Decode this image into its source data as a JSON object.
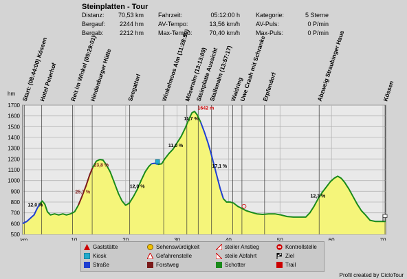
{
  "header": {
    "title": "Steinplatten - Tour",
    "stats": [
      {
        "label": "Distanz:",
        "value": "70,53 km"
      },
      {
        "label": "Bergauf:",
        "value": "2244 hm"
      },
      {
        "label": "Bergab:",
        "value": "2212 hm"
      }
    ],
    "stats2": [
      {
        "label": "Fahrzeit:",
        "value": "05:12:00 h"
      },
      {
        "label": "AV-Tempo:",
        "value": "13,56 km/h"
      },
      {
        "label": "Max-Tempo:",
        "value": "70,40 km/h"
      }
    ],
    "stats3": [
      {
        "label": "Kategorie:",
        "value": "5 Sterne"
      },
      {
        "label": "AV-Puls:",
        "value": "0 P/min"
      },
      {
        "label": "Max-Puls:",
        "value": "0 P/min"
      }
    ]
  },
  "legend": [
    {
      "label": "Gaststätte",
      "icon": "gaststaette-icon",
      "color": "#cc0000"
    },
    {
      "label": "Kiosk",
      "icon": "kiosk-icon",
      "color": "#22aacc"
    },
    {
      "label": "Straße",
      "icon": "road-icon",
      "color": "#1f3fd0"
    },
    {
      "label": "Sehenswürdigkeit",
      "icon": "sight-icon",
      "color": "#f0c000"
    },
    {
      "label": "Gefahrenstelle",
      "icon": "danger-icon",
      "color": "#cc0000"
    },
    {
      "label": "Forstweg",
      "icon": "forestroad-icon",
      "color": "#7a1a1a"
    },
    {
      "label": "steiler Anstieg",
      "icon": "steep-ascent-icon",
      "color": "#cc0000"
    },
    {
      "label": "steile Abfahrt",
      "icon": "steep-descent-icon",
      "color": "#cc0000"
    },
    {
      "label": "Schotter",
      "icon": "gravel-icon",
      "color": "#1a8a1a"
    },
    {
      "label": "Kontrollstelle",
      "icon": "checkpoint-icon",
      "color": "#cc0000"
    },
    {
      "label": "Ziel",
      "icon": "finish-flag-icon",
      "color": "#000000"
    },
    {
      "label": "Trail",
      "icon": "trail-icon",
      "color": "#cc0000"
    }
  ],
  "credit": "Profil created by CicloTour",
  "chart_data": {
    "type": "area",
    "xlabel": "km",
    "ylabel": "hm",
    "xlim": [
      0,
      70.53
    ],
    "ylim": [
      500,
      1700
    ],
    "xticks": [
      0,
      10,
      20,
      30,
      40,
      50,
      60,
      70
    ],
    "xtick_labels": [
      "km",
      "10",
      "20",
      "30",
      "40",
      "50",
      "60",
      "70"
    ],
    "yticks": [
      500,
      600,
      700,
      800,
      900,
      1000,
      1100,
      1200,
      1300,
      1400,
      1500,
      1600,
      1700
    ],
    "grid": true,
    "fill_color": "#f5f57a",
    "profile": [
      [
        0,
        600
      ],
      [
        0.8,
        620
      ],
      [
        1.5,
        650
      ],
      [
        2.2,
        680
      ],
      [
        2.8,
        740
      ],
      [
        3.3,
        780
      ],
      [
        3.8,
        810
      ],
      [
        4.3,
        780
      ],
      [
        4.8,
        710
      ],
      [
        5.4,
        680
      ],
      [
        6.2,
        690
      ],
      [
        7.0,
        680
      ],
      [
        7.8,
        690
      ],
      [
        8.5,
        680
      ],
      [
        9.3,
        690
      ],
      [
        10.1,
        710
      ],
      [
        10.8,
        770
      ],
      [
        11.5,
        850
      ],
      [
        12.3,
        950
      ],
      [
        13.0,
        1050
      ],
      [
        13.6,
        1120
      ],
      [
        14.3,
        1180
      ],
      [
        15.0,
        1195
      ],
      [
        15.6,
        1190
      ],
      [
        16.2,
        1150
      ],
      [
        17.0,
        1080
      ],
      [
        17.8,
        980
      ],
      [
        18.6,
        880
      ],
      [
        19.3,
        810
      ],
      [
        20.0,
        770
      ],
      [
        20.7,
        790
      ],
      [
        21.5,
        850
      ],
      [
        22.3,
        920
      ],
      [
        23.0,
        1000
      ],
      [
        23.8,
        1080
      ],
      [
        24.5,
        1130
      ],
      [
        25.0,
        1155
      ],
      [
        25.6,
        1160
      ],
      [
        26.3,
        1150
      ],
      [
        27.0,
        1155
      ],
      [
        27.6,
        1200
      ],
      [
        28.4,
        1250
      ],
      [
        29.2,
        1290
      ],
      [
        30.0,
        1350
      ],
      [
        30.8,
        1410
      ],
      [
        31.6,
        1490
      ],
      [
        32.3,
        1570
      ],
      [
        32.9,
        1630
      ],
      [
        33.4,
        1642
      ],
      [
        33.9,
        1610
      ],
      [
        34.6,
        1540
      ],
      [
        35.3,
        1450
      ],
      [
        36.0,
        1350
      ],
      [
        36.6,
        1250
      ],
      [
        37.2,
        1140
      ],
      [
        37.8,
        1030
      ],
      [
        38.4,
        920
      ],
      [
        39.0,
        830
      ],
      [
        39.6,
        800
      ],
      [
        40.3,
        800
      ],
      [
        41.0,
        790
      ],
      [
        41.8,
        760
      ],
      [
        42.6,
        740
      ],
      [
        43.4,
        720
      ],
      [
        44.4,
        705
      ],
      [
        45.5,
        690
      ],
      [
        46.6,
        685
      ],
      [
        47.8,
        690
      ],
      [
        49.0,
        690
      ],
      [
        50.2,
        680
      ],
      [
        51.4,
        665
      ],
      [
        52.6,
        660
      ],
      [
        53.8,
        660
      ],
      [
        55.0,
        660
      ],
      [
        55.8,
        700
      ],
      [
        56.6,
        760
      ],
      [
        57.4,
        830
      ],
      [
        58.2,
        890
      ],
      [
        59.0,
        940
      ],
      [
        59.8,
        990
      ],
      [
        60.5,
        1020
      ],
      [
        61.2,
        1040
      ],
      [
        61.9,
        1020
      ],
      [
        62.6,
        980
      ],
      [
        63.4,
        920
      ],
      [
        64.2,
        850
      ],
      [
        65.0,
        780
      ],
      [
        65.8,
        720
      ],
      [
        66.6,
        680
      ],
      [
        67.5,
        630
      ],
      [
        68.5,
        620
      ],
      [
        69.5,
        620
      ],
      [
        70.53,
        620
      ]
    ],
    "segments": [
      {
        "type": "Straße",
        "color": "#1f3fd0",
        "from": 0,
        "to": 3.3
      },
      {
        "type": "Schotter",
        "color": "#1a8a1a",
        "from": 3.3,
        "to": 10.8
      },
      {
        "type": "Forstweg",
        "color": "#7a1a1a",
        "from": 10.8,
        "to": 13.6
      },
      {
        "type": "Schotter",
        "color": "#1a8a1a",
        "from": 13.6,
        "to": 25.0
      },
      {
        "type": "Straße",
        "color": "#1f3fd0",
        "from": 25.0,
        "to": 26.3
      },
      {
        "type": "Schotter",
        "color": "#1a8a1a",
        "from": 26.3,
        "to": 34.6
      },
      {
        "type": "Straße",
        "color": "#1f3fd0",
        "from": 34.6,
        "to": 39.0
      },
      {
        "type": "Schotter",
        "color": "#1a8a1a",
        "from": 39.0,
        "to": 70.53
      }
    ],
    "waypoints": [
      {
        "km": 0.3,
        "label": "Start: (08:44:00) Kössen"
      },
      {
        "km": 3.7,
        "label": "Hotel Peterhof"
      },
      {
        "km": 9.7,
        "label": "Reit im Winkel (09:29:01)"
      },
      {
        "km": 13.5,
        "label": "Hindenburger Hütte"
      },
      {
        "km": 20.8,
        "label": "Seegatterl"
      },
      {
        "km": 27.4,
        "label": "Winkelmoos Alm (11:28:59)"
      },
      {
        "km": 31.9,
        "label": "Möseralm (13:13:09)"
      },
      {
        "km": 34.1,
        "label": "Steinplatte Aussicht"
      },
      {
        "km": 36.7,
        "label": "Stallenalm (13:57:17)"
      },
      {
        "km": 40.8,
        "label": "Waidring"
      },
      {
        "km": 42.6,
        "label": "Uwe Crash mit Schranke"
      },
      {
        "km": 47.0,
        "label": "Erpfendorf"
      },
      {
        "km": 57.6,
        "label": "Abzweig Straubinger Haus"
      },
      {
        "km": 70.4,
        "label": "Kössen"
      }
    ],
    "annotations": [
      {
        "km": 1.0,
        "hm": 760,
        "text": "12,0 %",
        "color": "#000000"
      },
      {
        "km": 10.2,
        "hm": 880,
        "text": "25,7 %",
        "color": "#7a1a1a"
      },
      {
        "km": 13.8,
        "hm": 1130,
        "text": "23,8 %",
        "color": "#7a1a1a"
      },
      {
        "km": 20.8,
        "hm": 930,
        "text": "12,0 %",
        "color": "#000000"
      },
      {
        "km": 28.3,
        "hm": 1310,
        "text": "11,0 %",
        "color": "#000000"
      },
      {
        "km": 31.3,
        "hm": 1560,
        "text": "11,7 %",
        "color": "#000000"
      },
      {
        "km": 36.8,
        "hm": 1120,
        "text": "17,1 %",
        "color": "#000000"
      },
      {
        "km": 55.9,
        "hm": 840,
        "text": "12,3 %",
        "color": "#000000"
      },
      {
        "km": 34.0,
        "hm": 1660,
        "text": "1642 m",
        "color": "#cc0000"
      }
    ],
    "markers": [
      {
        "km": 26.2,
        "hm": 1175,
        "icon": "kiosk-icon",
        "color": "#22aacc"
      },
      {
        "km": 43.0,
        "hm": 760,
        "icon": "checkpoint-icon",
        "color": "#cc0000"
      },
      {
        "km": 70.0,
        "hm": 640,
        "icon": "finish-flag-icon",
        "color": "#000000"
      }
    ]
  }
}
